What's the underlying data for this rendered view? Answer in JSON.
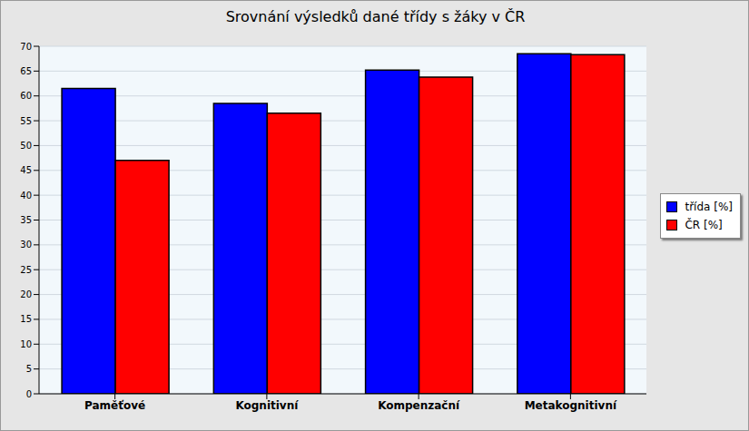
{
  "chart_data": {
    "type": "bar",
    "title": "Srovnání výsledků dané třídy s žáky v ČR",
    "categories": [
      "Paměťové",
      "Kognitivní",
      "Kompenzační",
      "Metakognitivní"
    ],
    "series": [
      {
        "name": "třída [%]",
        "color": "#0000ff",
        "values": [
          61.5,
          58.5,
          65.2,
          68.5
        ]
      },
      {
        "name": "ČR [%]",
        "color": "#ff0000",
        "values": [
          47,
          56.5,
          63.8,
          68.3
        ]
      }
    ],
    "ylim": [
      0,
      70
    ],
    "yticks": [
      0,
      5,
      10,
      15,
      20,
      25,
      30,
      35,
      40,
      45,
      50,
      55,
      60,
      65,
      70
    ],
    "grid": true,
    "legend": "right"
  }
}
